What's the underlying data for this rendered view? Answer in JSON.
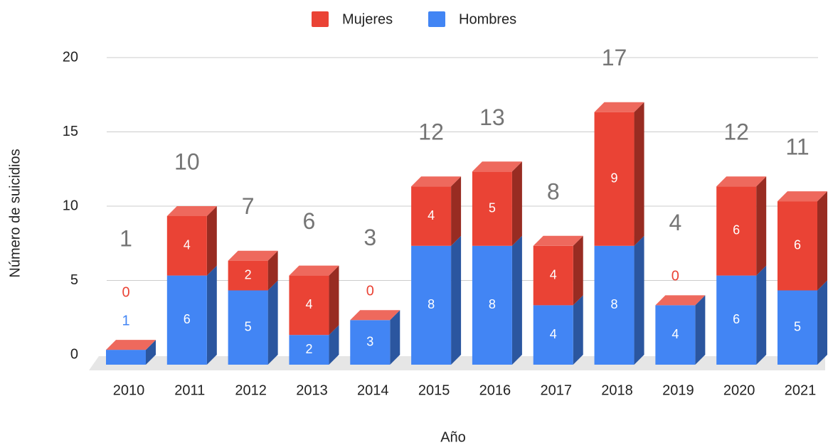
{
  "chart_data": {
    "type": "bar3d-stacked",
    "categories": [
      "2010",
      "2011",
      "2012",
      "2013",
      "2014",
      "2015",
      "2016",
      "2017",
      "2018",
      "2019",
      "2020",
      "2021"
    ],
    "series": [
      {
        "name": "Hombres",
        "color": "#4285f4",
        "values": [
          1,
          6,
          5,
          2,
          3,
          8,
          8,
          4,
          8,
          4,
          6,
          5
        ]
      },
      {
        "name": "Mujeres",
        "color": "#ea4335",
        "values": [
          0,
          4,
          2,
          4,
          0,
          4,
          5,
          4,
          9,
          0,
          6,
          6
        ]
      }
    ],
    "totals": [
      1,
      10,
      7,
      6,
      3,
      12,
      13,
      8,
      17,
      4,
      12,
      11
    ],
    "ylim": [
      0,
      20
    ],
    "yticks": [
      0,
      5,
      10,
      15,
      20
    ],
    "grid": true,
    "xlabel": "Año",
    "ylabel": "Número de suicidios"
  }
}
